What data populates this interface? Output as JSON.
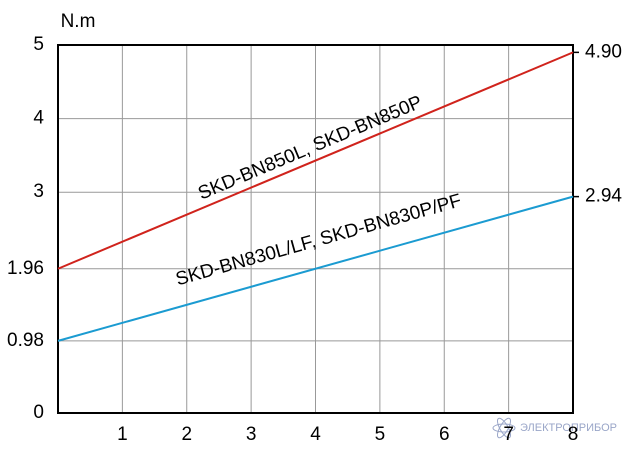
{
  "chart_data": {
    "type": "line",
    "y_label": "N.m",
    "x": [
      0,
      8
    ],
    "series": [
      {
        "name": "SKD-BN850L, SKD-BN850P",
        "color": "#d0231c",
        "values": [
          1.96,
          4.9
        ]
      },
      {
        "name": "SKD-BN830L/LF, SKD-BN830P/PF",
        "color": "#1b9bd1",
        "values": [
          0.98,
          2.94
        ]
      }
    ],
    "xlim": [
      0,
      8
    ],
    "xticks": [
      1,
      2,
      3,
      4,
      5,
      6,
      7,
      8
    ],
    "ylim": [
      0,
      5
    ],
    "yticks": [
      0,
      0.98,
      1.96,
      3,
      4,
      5
    ],
    "y2lim": [
      0,
      5
    ],
    "y2ticks": [
      {
        "value": 2.94,
        "label": "2.94"
      },
      {
        "value": 4.9,
        "label": "4.90"
      }
    ],
    "grid": true,
    "watermark": "ЭЛЕКТРОПРИБОР"
  }
}
